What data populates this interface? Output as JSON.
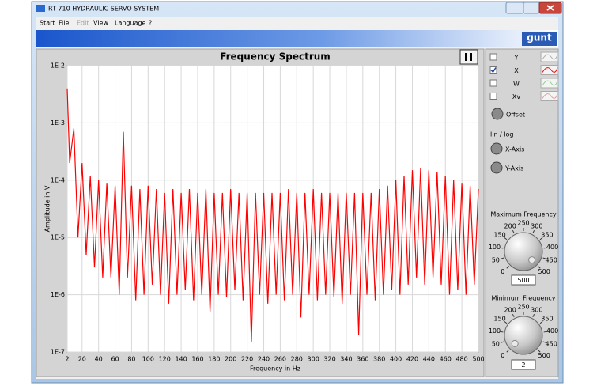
{
  "window": {
    "title": "RT 710 HYDRAULIC SERVO SYSTEM",
    "logo": "gunt"
  },
  "menu": [
    {
      "label": "Start",
      "enabled": true
    },
    {
      "label": "File",
      "enabled": true
    },
    {
      "label": "Edit",
      "enabled": false
    },
    {
      "label": "View",
      "enabled": true
    },
    {
      "label": "Language",
      "enabled": true
    },
    {
      "label": "?",
      "enabled": true
    }
  ],
  "chart_data": {
    "type": "line",
    "title": "Frequency Spectrum",
    "x_label": "Frequency in Hz",
    "y_label": "Amplitude in V",
    "color": "#ff0000",
    "log_y": true,
    "grid": true,
    "xlim": [
      2,
      500
    ],
    "ylim": [
      1e-07,
      0.01
    ],
    "xticks": [
      2,
      20,
      40,
      60,
      80,
      100,
      120,
      140,
      160,
      180,
      200,
      220,
      240,
      260,
      280,
      300,
      320,
      340,
      360,
      380,
      400,
      420,
      440,
      460,
      480,
      500
    ],
    "yticks": [
      {
        "value": 1e-07,
        "label": "1E-7"
      },
      {
        "value": 1e-06,
        "label": "1E-6"
      },
      {
        "value": 1e-05,
        "label": "1E-5"
      },
      {
        "value": 0.0001,
        "label": "1E-4"
      },
      {
        "value": 0.001,
        "label": "1E-3"
      },
      {
        "value": 0.01,
        "label": "1E-2"
      }
    ],
    "x": [
      2,
      5,
      10,
      15,
      20,
      25,
      30,
      35,
      40,
      45,
      50,
      55,
      60,
      65,
      70,
      75,
      80,
      85,
      90,
      95,
      100,
      105,
      110,
      115,
      120,
      125,
      130,
      135,
      140,
      145,
      150,
      155,
      160,
      165,
      170,
      175,
      180,
      185,
      190,
      195,
      200,
      205,
      210,
      215,
      220,
      225,
      230,
      235,
      240,
      245,
      250,
      255,
      260,
      265,
      270,
      275,
      280,
      285,
      290,
      295,
      300,
      305,
      310,
      315,
      320,
      325,
      330,
      335,
      340,
      345,
      350,
      355,
      360,
      365,
      370,
      375,
      380,
      385,
      390,
      395,
      400,
      405,
      410,
      415,
      420,
      425,
      430,
      435,
      440,
      445,
      450,
      455,
      460,
      465,
      470,
      475,
      480,
      485,
      490,
      495,
      500
    ],
    "values": [
      0.004,
      0.0002,
      0.0008,
      1e-05,
      0.0002,
      5e-06,
      0.00012,
      3e-06,
      0.0001,
      2e-06,
      9e-05,
      2e-06,
      8e-05,
      1e-06,
      0.0007,
      2e-06,
      8e-05,
      8e-07,
      7e-05,
      1e-06,
      8e-05,
      1.5e-06,
      7e-05,
      1e-06,
      6e-05,
      7e-07,
      7e-05,
      1e-06,
      6e-05,
      1.2e-06,
      7e-05,
      8e-07,
      6e-05,
      1e-06,
      7e-05,
      5e-07,
      6e-05,
      1e-06,
      6e-05,
      9e-07,
      7e-05,
      1.2e-06,
      6e-05,
      8e-07,
      6e-05,
      1.5e-07,
      6e-05,
      1e-06,
      6e-05,
      7e-07,
      6e-05,
      1e-06,
      6e-05,
      8e-07,
      7e-05,
      1e-06,
      6e-05,
      4e-07,
      6e-05,
      1e-06,
      7e-05,
      8e-07,
      6e-05,
      1e-06,
      6e-05,
      9e-07,
      6e-05,
      7e-07,
      6e-05,
      1e-06,
      6e-05,
      2e-07,
      6e-05,
      1e-06,
      6e-05,
      8e-07,
      7e-05,
      1e-06,
      8e-05,
      1.2e-06,
      0.0001,
      1e-06,
      0.00012,
      1.5e-06,
      0.00015,
      2e-06,
      0.00016,
      1.5e-06,
      0.00015,
      2e-06,
      0.00014,
      1.5e-06,
      0.00012,
      1e-06,
      0.0001,
      1.2e-06,
      9e-05,
      1e-06,
      8e-05,
      1.5e-06,
      7e-05
    ]
  },
  "channels": [
    {
      "label": "Y",
      "checked": false,
      "color": "#b0b0b0"
    },
    {
      "label": "X",
      "checked": true,
      "color": "#ff0000"
    },
    {
      "label": "W",
      "checked": false,
      "color": "#90d090"
    },
    {
      "label": "Xv",
      "checked": false,
      "color": "#e0a0a0"
    }
  ],
  "buttons": {
    "offset": "Offset",
    "lin_log": "lin / log",
    "x_axis": "X-Axis",
    "y_axis": "Y-Axis"
  },
  "max_frequency": {
    "label": "Maximum Frequency",
    "scale": [
      0,
      50,
      100,
      150,
      200,
      250,
      300,
      350,
      400,
      450,
      500
    ],
    "value": 500
  },
  "min_frequency": {
    "label": "Minimum Frequency",
    "scale": [
      0,
      50,
      100,
      150,
      200,
      250,
      300,
      350,
      400,
      450,
      500
    ],
    "value": 2
  }
}
